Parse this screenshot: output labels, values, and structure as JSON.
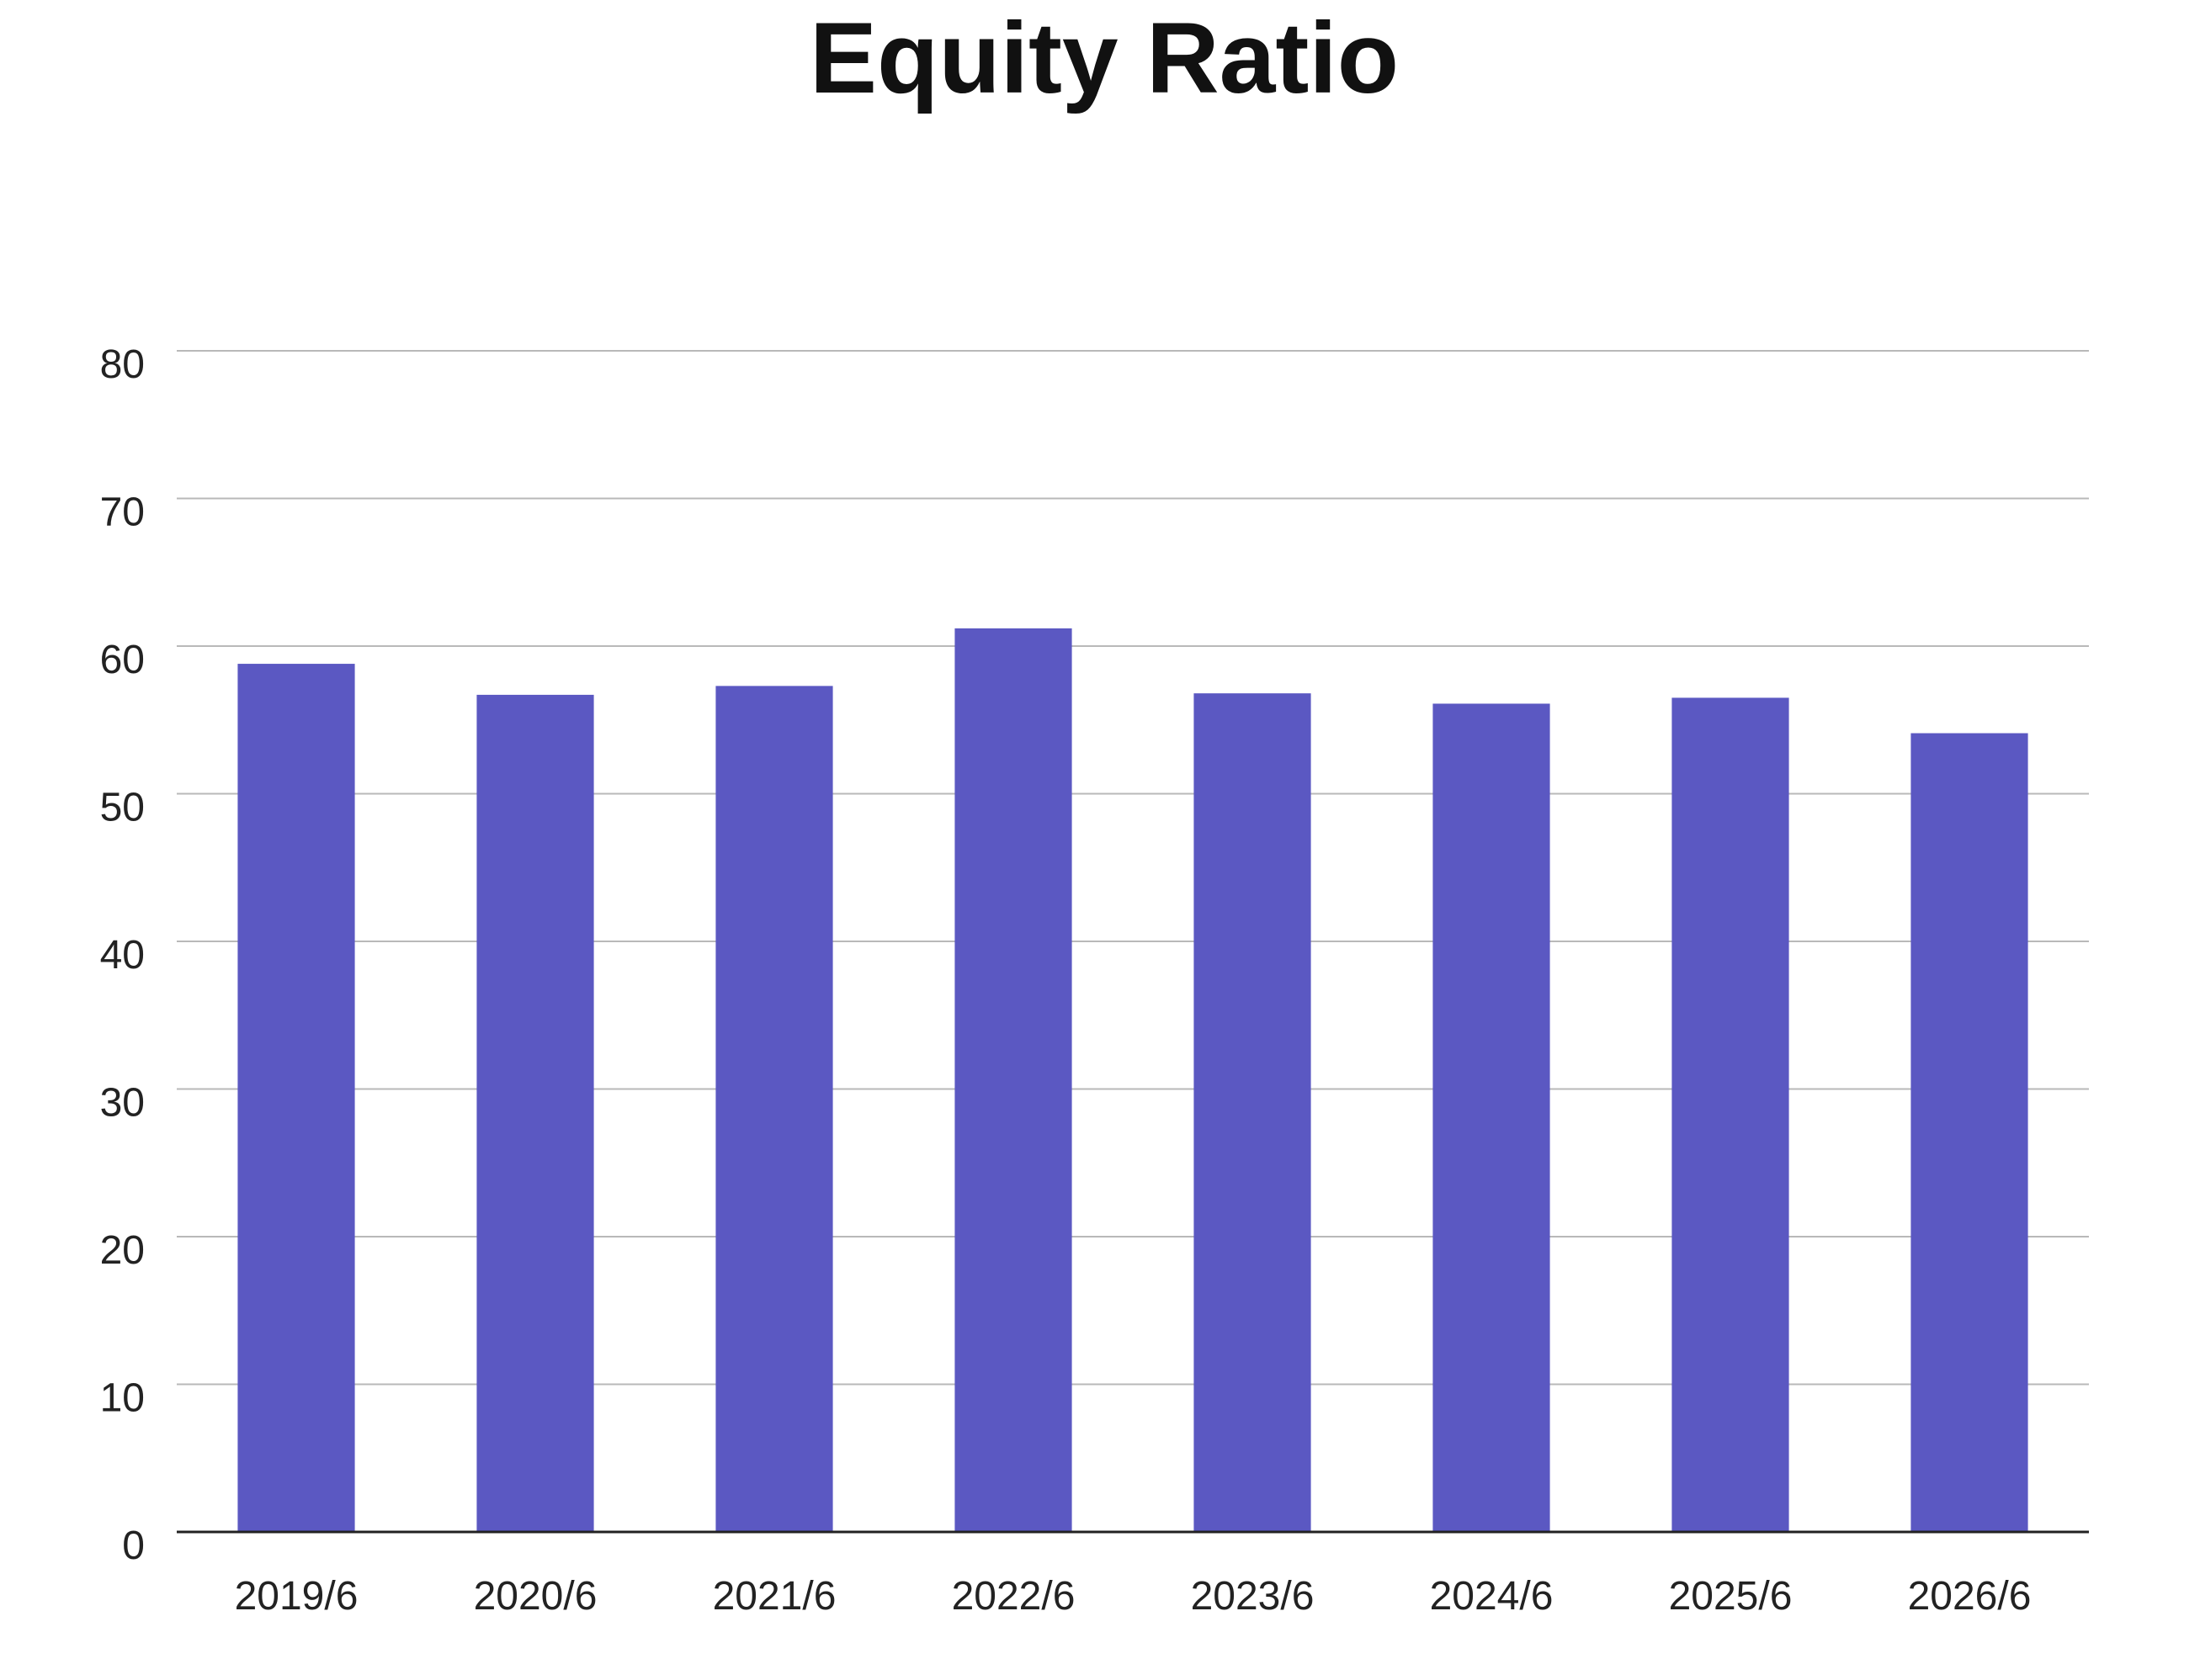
{
  "chart_data": {
    "type": "bar",
    "title": "Equity Ratio",
    "categories": [
      "2019/6",
      "2020/6",
      "2021/6",
      "2022/6",
      "2023/6",
      "2024/6",
      "2025/6",
      "2026/6"
    ],
    "values": [
      58.8,
      56.7,
      57.3,
      61.2,
      56.8,
      56.1,
      56.5,
      54.1
    ],
    "ylim": [
      0,
      80
    ],
    "yticks": [
      "0",
      "10",
      "20",
      "30",
      "40",
      "50",
      "60",
      "70",
      "80"
    ],
    "grid": true,
    "bar_color": "#5b58c2",
    "legend": "none"
  }
}
